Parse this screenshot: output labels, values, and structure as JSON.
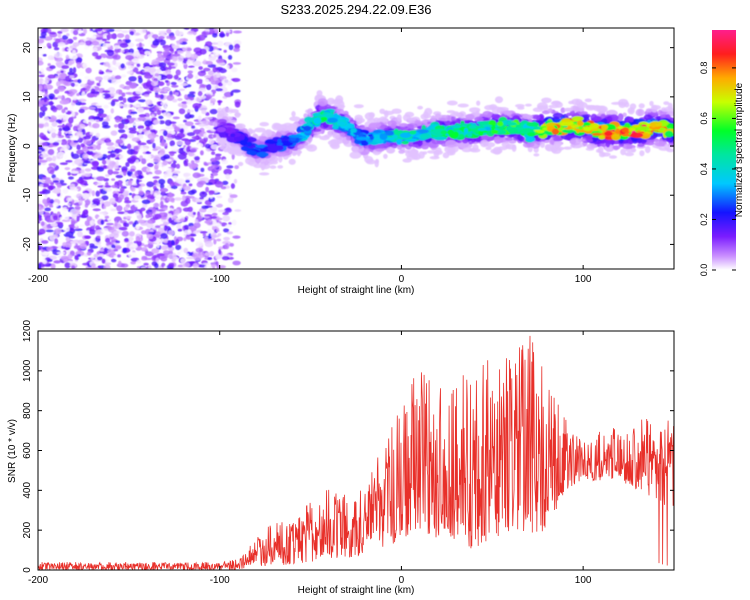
{
  "figure": {
    "title": "S233.2025.294.22.09.E36"
  },
  "chart_data": [
    {
      "type": "heatmap",
      "title": "S233.2025.294.22.09.E36",
      "xlabel": "Height of straight line (km)",
      "ylabel": "Frequency (Hz)",
      "xlim": [
        -200,
        150
      ],
      "ylim": [
        -25,
        24
      ],
      "xticks": [
        -200,
        -100,
        0,
        100
      ],
      "yticks": [
        -20,
        -10,
        0,
        10,
        20
      ],
      "colorbar": {
        "label": "Normalized spectral amplitude",
        "range": [
          0,
          0.95
        ],
        "ticks": [
          0.0,
          0.2,
          0.4,
          0.6,
          0.8
        ]
      },
      "noise_region_x": [
        -200,
        -90
      ],
      "signal_ridge": {
        "x": [
          -100,
          -90,
          -80,
          -70,
          -60,
          -50,
          -45,
          -40,
          -30,
          -20,
          -10,
          0,
          10,
          20,
          30,
          40,
          50,
          60,
          70,
          80,
          90,
          100,
          110,
          120,
          130,
          140,
          150
        ],
        "frequency": [
          4,
          2,
          -1,
          0,
          1,
          4,
          6,
          6,
          4,
          1,
          2,
          2,
          2,
          3,
          3,
          3,
          4,
          4,
          3,
          4,
          4,
          4,
          3,
          3,
          3,
          4,
          3
        ],
        "amplitude": [
          0.15,
          0.2,
          0.3,
          0.25,
          0.3,
          0.45,
          0.55,
          0.5,
          0.4,
          0.35,
          0.4,
          0.5,
          0.45,
          0.5,
          0.55,
          0.5,
          0.55,
          0.6,
          0.55,
          0.75,
          0.8,
          0.75,
          0.9,
          0.85,
          0.95,
          0.85,
          0.7
        ]
      }
    },
    {
      "type": "line",
      "xlabel": "Height of straight line (km)",
      "ylabel": "SNR (10 * v/v)",
      "xlim": [
        -200,
        150
      ],
      "ylim": [
        0,
        1200
      ],
      "xticks": [
        -200,
        -100,
        0,
        100
      ],
      "yticks": [
        0,
        200,
        400,
        600,
        800,
        1000,
        1200
      ],
      "series": [
        {
          "name": "SNR",
          "color": "#e8302a",
          "envelope_x": [
            -200,
            -100,
            -90,
            -80,
            -70,
            -60,
            -50,
            -40,
            -30,
            -20,
            -10,
            0,
            10,
            20,
            30,
            40,
            50,
            60,
            70,
            80,
            90,
            100,
            110,
            120,
            130,
            140,
            150
          ],
          "envelope_low": [
            0,
            0,
            0,
            20,
            20,
            30,
            40,
            60,
            60,
            80,
            100,
            150,
            200,
            150,
            150,
            100,
            150,
            200,
            150,
            200,
            400,
            450,
            450,
            450,
            400,
            350,
            300
          ],
          "envelope_high": [
            40,
            40,
            60,
            160,
            270,
            230,
            350,
            420,
            380,
            420,
            630,
            830,
            1030,
            920,
            960,
            1030,
            1130,
            1100,
            1200,
            980,
            760,
            650,
            700,
            720,
            750,
            780,
            750
          ]
        }
      ]
    }
  ]
}
